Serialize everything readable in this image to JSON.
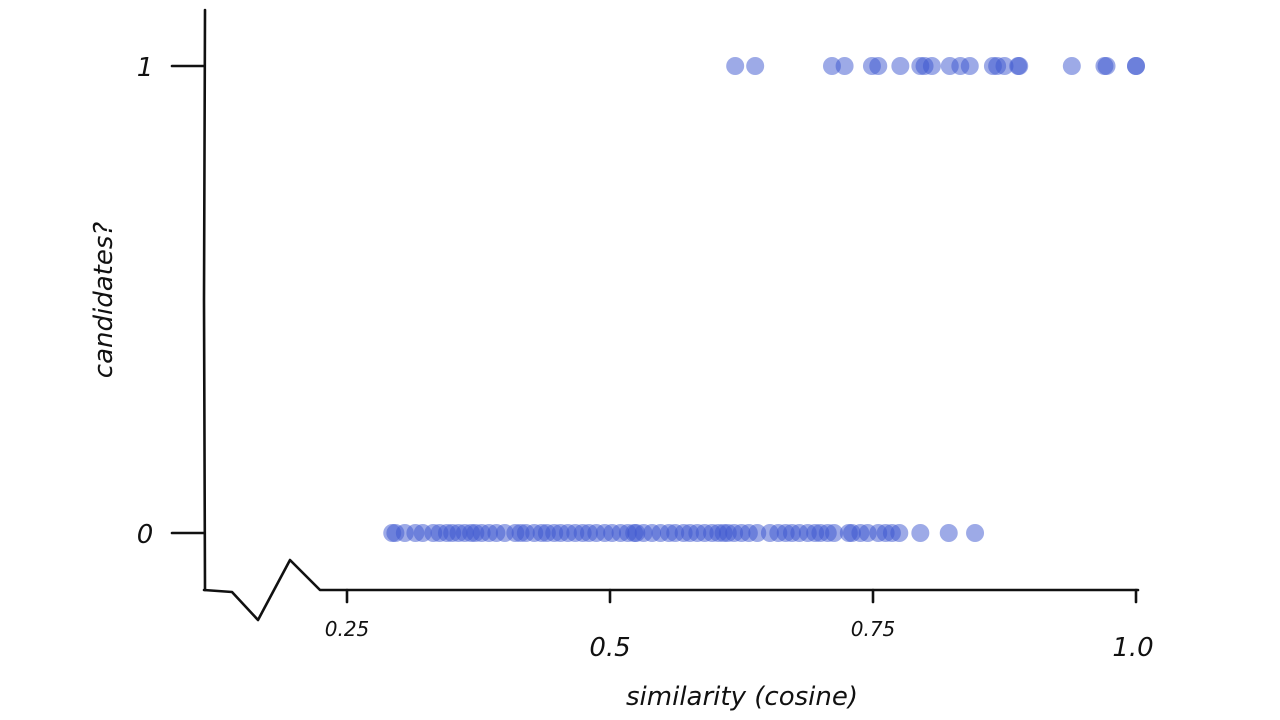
{
  "chart_data": {
    "type": "scatter",
    "title": "",
    "xlabel": "similarity (cosine)",
    "ylabel": "candidates?",
    "xlim": [
      0.2,
      1.0
    ],
    "ylim": [
      0,
      1
    ],
    "x_ticks": [
      "0.25",
      "0.5",
      "0.75",
      "1.0"
    ],
    "y_ticks": [
      "0",
      "1"
    ],
    "grid": false,
    "style": "xkcd",
    "point_color": "#3b55d0",
    "point_alpha": 0.5,
    "series": [
      {
        "y": 1,
        "x": [
          0.619,
          0.638,
          0.711,
          0.723,
          0.749,
          0.755,
          0.776,
          0.795,
          0.799,
          0.806,
          0.823,
          0.833,
          0.842,
          0.864,
          0.868,
          0.875,
          0.888,
          0.889,
          0.939,
          0.97,
          0.972,
          1.0,
          1.0
        ]
      },
      {
        "y": 0,
        "x": [
          0.293,
          0.296,
          0.305,
          0.315,
          0.322,
          0.332,
          0.338,
          0.345,
          0.35,
          0.356,
          0.362,
          0.368,
          0.372,
          0.378,
          0.385,
          0.392,
          0.4,
          0.41,
          0.415,
          0.42,
          0.428,
          0.435,
          0.44,
          0.447,
          0.453,
          0.46,
          0.467,
          0.474,
          0.48,
          0.487,
          0.495,
          0.502,
          0.51,
          0.517,
          0.523,
          0.525,
          0.532,
          0.54,
          0.548,
          0.556,
          0.562,
          0.57,
          0.576,
          0.583,
          0.59,
          0.597,
          0.603,
          0.608,
          0.612,
          0.618,
          0.625,
          0.632,
          0.64,
          0.652,
          0.66,
          0.667,
          0.673,
          0.68,
          0.688,
          0.695,
          0.7,
          0.707,
          0.713,
          0.727,
          0.73,
          0.738,
          0.745,
          0.755,
          0.762,
          0.768,
          0.775,
          0.795,
          0.822,
          0.847
        ]
      }
    ]
  }
}
